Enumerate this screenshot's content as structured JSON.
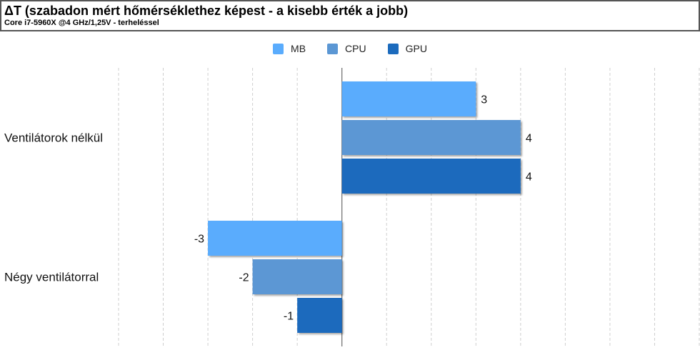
{
  "title": "ΔT (szabadon mért hőmérséklethez képest - a kisebb érték a jobb)",
  "subtitle": "Core i7-5960X @4 GHz/1,25V - terheléssel",
  "chart_data": {
    "type": "bar",
    "orientation": "horizontal",
    "categories": [
      "Ventilátorok nélkül",
      "Négy ventilátorral"
    ],
    "series": [
      {
        "name": "MB",
        "values": [
          3,
          -3
        ],
        "color": "#5aacfd"
      },
      {
        "name": "CPU",
        "values": [
          4,
          -2
        ],
        "color": "#5b97d4"
      },
      {
        "name": "GPU",
        "values": [
          4,
          -1
        ],
        "color": "#1c6bbd"
      }
    ],
    "xlim": [
      -5,
      8
    ],
    "grid": true,
    "legend_position": "top-center",
    "data_labels": true
  }
}
